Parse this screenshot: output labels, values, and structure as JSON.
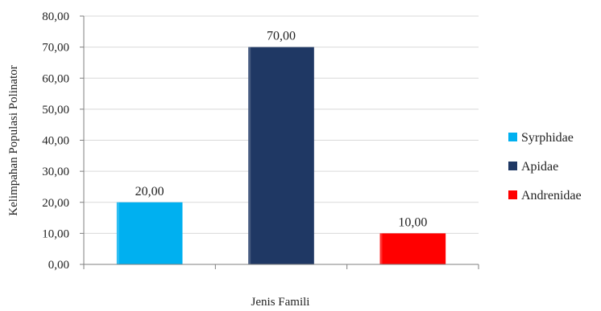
{
  "chart_data": {
    "type": "bar",
    "categories": [
      "Syrphidae",
      "Apidae",
      "Andrenidae"
    ],
    "values": [
      20.0,
      70.0,
      10.0
    ],
    "value_labels": [
      "20,00",
      "70,00",
      "10,00"
    ],
    "colors": [
      "#00B0F0",
      "#1F3864",
      "#FF0000"
    ],
    "xlabel": "Jenis Famili",
    "ylabel": "Kelimpahan Populasi Polinator",
    "ylim": [
      0,
      80
    ],
    "ytick_values": [
      0,
      10,
      20,
      30,
      40,
      50,
      60,
      70,
      80
    ],
    "ytick_labels": [
      "0,00",
      "10,00",
      "20,00",
      "30,00",
      "40,00",
      "50,00",
      "60,00",
      "70,00",
      "80,00"
    ],
    "grid": true,
    "legend": {
      "position": "right",
      "entries": [
        "Syrphidae",
        "Apidae",
        "Andrenidae"
      ]
    }
  }
}
